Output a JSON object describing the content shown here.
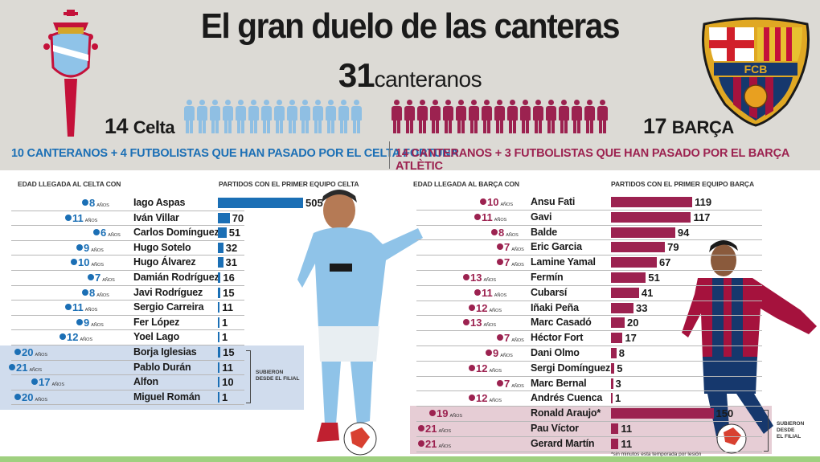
{
  "title": "El gran duelo de las canteras",
  "total": {
    "number": "31",
    "label": "canteranos"
  },
  "celta": {
    "count": "14",
    "name": "Celta",
    "subtitle": "10 CANTERANOS + 4 FUTBOLISTAS QUE HAN PASADO POR EL CELTA FORTUNA",
    "age_header": "EDAD LLEGADA AL CELTA CON",
    "matches_header": "PARTIDOS CON EL PRIMER EQUIPO CELTA",
    "color": "#1b6fb5",
    "filial_label": [
      "SUBIERON",
      "DESDE EL FILIAL"
    ],
    "players": [
      {
        "age": "8",
        "name": "Iago Aspas",
        "matches": 505
      },
      {
        "age": "11",
        "name": "Iván Villar",
        "matches": 70
      },
      {
        "age": "6",
        "name": "Carlos Domínguez",
        "matches": 51
      },
      {
        "age": "9",
        "name": "Hugo Sotelo",
        "matches": 32
      },
      {
        "age": "10",
        "name": "Hugo Álvarez",
        "matches": 31
      },
      {
        "age": "7",
        "name": "Damián Rodríguez",
        "matches": 16
      },
      {
        "age": "8",
        "name": "Javi Rodríguez",
        "matches": 15
      },
      {
        "age": "11",
        "name": "Sergio Carreira",
        "matches": 11
      },
      {
        "age": "9",
        "name": "Fer López",
        "matches": 1
      },
      {
        "age": "12",
        "name": "Yoel Lago",
        "matches": 1
      },
      {
        "age": "20",
        "name": "Borja Iglesias",
        "matches": 15
      },
      {
        "age": "21",
        "name": "Pablo Durán",
        "matches": 11
      },
      {
        "age": "17",
        "name": "Alfon",
        "matches": 10
      },
      {
        "age": "20",
        "name": "Miguel Román",
        "matches": 1
      }
    ]
  },
  "barca": {
    "count": "17",
    "name": "BARÇA",
    "subtitle": "14 CANTERANOS + 3 FUTBOLISTAS QUE HAN PASADO POR EL BARÇA ATLÈTIC",
    "age_header": "EDAD LLEGADA AL BARÇA CON",
    "matches_header": "PARTIDOS CON EL PRIMER EQUIPO BARÇA",
    "color": "#9c2250",
    "filial_label": [
      "SUBIERON",
      "DESDE",
      "EL FILIAL"
    ],
    "players": [
      {
        "age": "10",
        "name": "Ansu Fati",
        "matches": 119
      },
      {
        "age": "11",
        "name": "Gavi",
        "matches": 117
      },
      {
        "age": "8",
        "name": "Balde",
        "matches": 94
      },
      {
        "age": "7",
        "name": "Eric Garcia",
        "matches": 79
      },
      {
        "age": "7",
        "name": "Lamine Yamal",
        "matches": 67
      },
      {
        "age": "13",
        "name": "Fermín",
        "matches": 51
      },
      {
        "age": "11",
        "name": "Cubarsí",
        "matches": 41
      },
      {
        "age": "12",
        "name": "Iñaki Peña",
        "matches": 33
      },
      {
        "age": "13",
        "name": "Marc Casadó",
        "matches": 20
      },
      {
        "age": "7",
        "name": "Héctor Fort",
        "matches": 17
      },
      {
        "age": "9",
        "name": "Dani Olmo",
        "matches": 8
      },
      {
        "age": "12",
        "name": "Sergi Domínguez",
        "matches": 5
      },
      {
        "age": "7",
        "name": "Marc Bernal",
        "matches": 3
      },
      {
        "age": "12",
        "name": "Andrés Cuenca",
        "matches": 1
      },
      {
        "age": "19",
        "name": "Ronald Araujo*",
        "matches": 150
      },
      {
        "age": "21",
        "name": "Pau Víctor",
        "matches": 11
      },
      {
        "age": "21",
        "name": "Gerard Martín",
        "matches": 11
      }
    ]
  },
  "anos_label": "AÑOS",
  "footnote": "*sin minutos esta temporada por lesión",
  "crest_texts": {
    "barca_letters": "FCB"
  }
}
